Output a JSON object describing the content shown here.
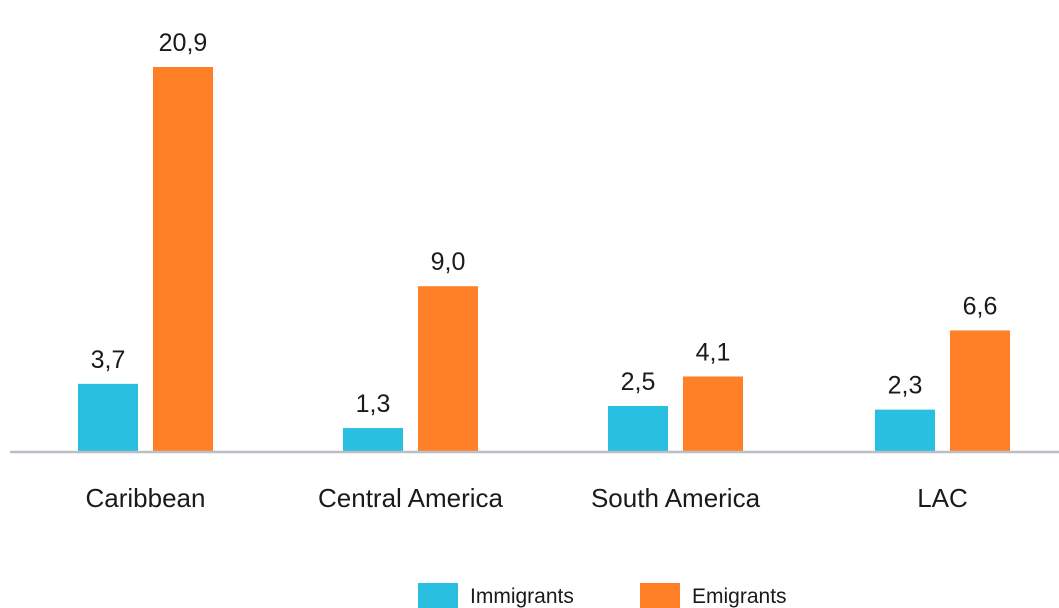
{
  "chart_data": {
    "type": "bar",
    "categories": [
      "Caribbean",
      "Central America",
      "South America",
      "LAC"
    ],
    "series": [
      {
        "name": "Immigrants",
        "values": [
          3.7,
          1.3,
          2.5,
          2.3
        ],
        "labels": [
          "3,7",
          "1,3",
          "2,5",
          "2,3"
        ],
        "color": "#29bfe0"
      },
      {
        "name": "Emigrants",
        "values": [
          20.9,
          9.0,
          4.1,
          6.6
        ],
        "labels": [
          "20,9",
          "9,0",
          "4,1",
          "6,6"
        ],
        "color": "#ff7f27"
      }
    ],
    "title": "",
    "xlabel": "",
    "ylabel": "",
    "ylim": [
      0,
      20.9
    ],
    "grid": false,
    "legend": "bottom-center",
    "axis_color": "#b9bec7"
  }
}
